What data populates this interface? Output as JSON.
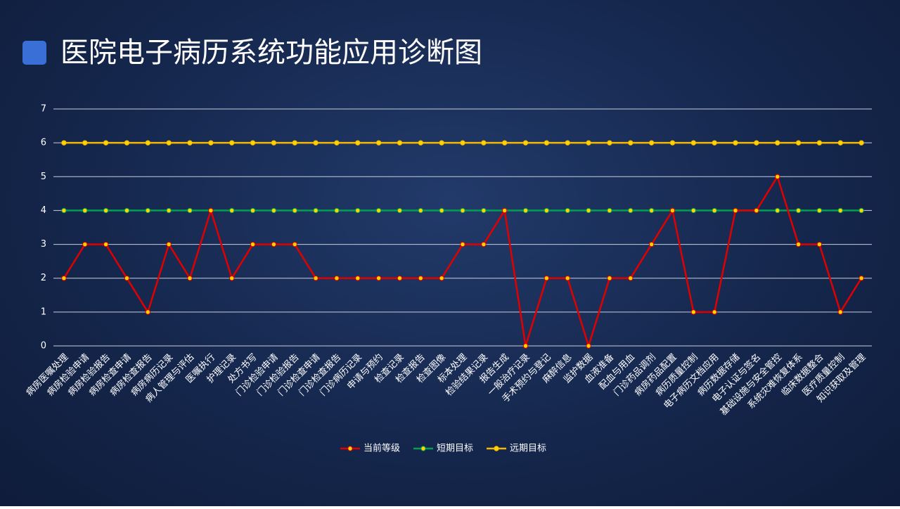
{
  "chart_data": {
    "type": "line",
    "title": "医院电子病历系统功能应用诊断图",
    "categories": [
      "病房医嘱处理",
      "病房检验申请",
      "病房检验报告",
      "病房检查申请",
      "病房检查报告",
      "病房病历记录",
      "病人管理与评估",
      "医嘱执行",
      "护理记录",
      "处方书写",
      "门诊检验申请",
      "门诊检验报告",
      "门诊检查申请",
      "门诊检查报告",
      "门诊病历记录",
      "申请与预约",
      "检查记录",
      "检查报告",
      "检查图像",
      "标本处理",
      "检验结果记录",
      "报告生成",
      "一般治疗记录",
      "手术预约与登记",
      "麻醉信息",
      "监护数据",
      "血液准备",
      "配血与用血",
      "门诊药品调剂",
      "病房药品配置",
      "病历质量控制",
      "电子病历文档应用",
      "病历数据存储",
      "电子认证与签名",
      "基础设施与安全管控",
      "系统灾难恢复体系",
      "临床数据整合",
      "医疗质量控制",
      "知识获取及管理"
    ],
    "series": [
      {
        "name": "当前等级",
        "color": "#e00000",
        "values": [
          2,
          3,
          3,
          2,
          1,
          3,
          2,
          4,
          2,
          3,
          3,
          3,
          2,
          2,
          2,
          2,
          2,
          2,
          2,
          3,
          3,
          4,
          0,
          2,
          2,
          0,
          2,
          2,
          3,
          4,
          1,
          1,
          4,
          4,
          5,
          3,
          3,
          1,
          2
        ]
      },
      {
        "name": "短期目标",
        "color": "#00a050",
        "values": [
          4,
          4,
          4,
          4,
          4,
          4,
          4,
          4,
          4,
          4,
          4,
          4,
          4,
          4,
          4,
          4,
          4,
          4,
          4,
          4,
          4,
          4,
          4,
          4,
          4,
          4,
          4,
          4,
          4,
          4,
          4,
          4,
          4,
          4,
          4,
          4,
          4,
          4,
          4
        ]
      },
      {
        "name": "远期目标",
        "color": "#f5b800",
        "values": [
          6,
          6,
          6,
          6,
          6,
          6,
          6,
          6,
          6,
          6,
          6,
          6,
          6,
          6,
          6,
          6,
          6,
          6,
          6,
          6,
          6,
          6,
          6,
          6,
          6,
          6,
          6,
          6,
          6,
          6,
          6,
          6,
          6,
          6,
          6,
          6,
          6,
          6,
          6
        ]
      }
    ],
    "ylim": [
      0,
      7
    ],
    "yticks": [
      0,
      1,
      2,
      3,
      4,
      5,
      6,
      7
    ],
    "grid": true,
    "legend": "bottom"
  }
}
